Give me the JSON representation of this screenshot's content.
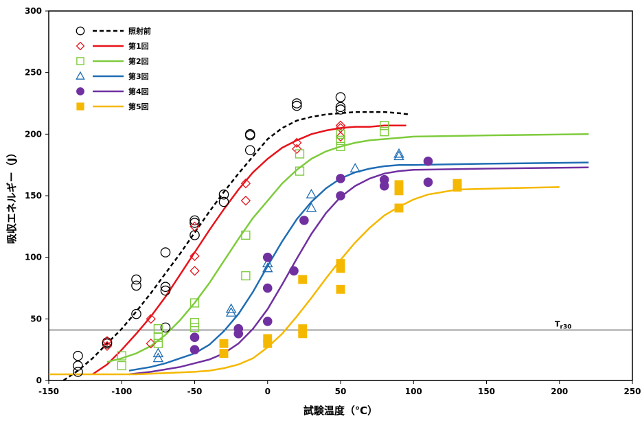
{
  "chart_data": {
    "type": "scatter",
    "xlabel": "試験温度（℃）",
    "ylabel": "吸収エネルギー（J）",
    "xlim": [
      -150,
      250
    ],
    "ylim": [
      0,
      300
    ],
    "x_ticks": [
      -150,
      -100,
      -50,
      0,
      50,
      100,
      150,
      200,
      250
    ],
    "y_ticks": [
      0,
      50,
      100,
      150,
      200,
      250,
      300
    ],
    "grid": false,
    "legend_position": "top-left",
    "reference_line": {
      "y": 41,
      "label_main": "T",
      "label_sub": "r30"
    },
    "series": [
      {
        "name": "照射前",
        "color": "#000000",
        "marker": "circle-open",
        "line_style": "dashed",
        "points": [
          [
            -130,
            20
          ],
          [
            -130,
            12
          ],
          [
            -130,
            7
          ],
          [
            -110,
            31
          ],
          [
            -110,
            30
          ],
          [
            -90,
            82
          ],
          [
            -90,
            77
          ],
          [
            -90,
            54
          ],
          [
            -70,
            104
          ],
          [
            -70,
            76
          ],
          [
            -70,
            73
          ],
          [
            -70,
            43
          ],
          [
            -50,
            130
          ],
          [
            -50,
            128
          ],
          [
            -50,
            118
          ],
          [
            -30,
            151
          ],
          [
            -30,
            145
          ],
          [
            -12,
            200
          ],
          [
            -12,
            199
          ],
          [
            -12,
            187
          ],
          [
            20,
            225
          ],
          [
            20,
            223
          ],
          [
            50,
            230
          ],
          [
            50,
            222
          ],
          [
            50,
            220
          ]
        ],
        "curve": [
          [
            -140,
            0
          ],
          [
            -130,
            8
          ],
          [
            -120,
            18
          ],
          [
            -110,
            30
          ],
          [
            -100,
            42
          ],
          [
            -90,
            56
          ],
          [
            -80,
            71
          ],
          [
            -70,
            87
          ],
          [
            -60,
            103
          ],
          [
            -50,
            120
          ],
          [
            -40,
            137
          ],
          [
            -30,
            153
          ],
          [
            -20,
            168
          ],
          [
            -10,
            182
          ],
          [
            0,
            196
          ],
          [
            10,
            205
          ],
          [
            20,
            211
          ],
          [
            30,
            214
          ],
          [
            40,
            216
          ],
          [
            50,
            217
          ],
          [
            60,
            218
          ],
          [
            70,
            218
          ],
          [
            80,
            218
          ],
          [
            90,
            217
          ],
          [
            97,
            216
          ]
        ]
      },
      {
        "name": "第1回",
        "color": "#e8131b",
        "marker": "diamond-open",
        "line_style": "solid",
        "points": [
          [
            -110,
            32
          ],
          [
            -110,
            28
          ],
          [
            -80,
            50
          ],
          [
            -80,
            30
          ],
          [
            -50,
            125
          ],
          [
            -50,
            101
          ],
          [
            -50,
            89
          ],
          [
            -15,
            160
          ],
          [
            -15,
            146
          ],
          [
            20,
            193
          ],
          [
            20,
            188
          ],
          [
            50,
            207
          ],
          [
            50,
            205
          ],
          [
            50,
            198
          ]
        ],
        "curve": [
          [
            -120,
            5
          ],
          [
            -110,
            13
          ],
          [
            -100,
            25
          ],
          [
            -90,
            38
          ],
          [
            -80,
            52
          ],
          [
            -70,
            68
          ],
          [
            -60,
            86
          ],
          [
            -50,
            104
          ],
          [
            -40,
            122
          ],
          [
            -30,
            139
          ],
          [
            -20,
            155
          ],
          [
            -10,
            169
          ],
          [
            0,
            180
          ],
          [
            10,
            189
          ],
          [
            20,
            195
          ],
          [
            30,
            200
          ],
          [
            40,
            203
          ],
          [
            50,
            205
          ],
          [
            60,
            206
          ],
          [
            70,
            206
          ],
          [
            80,
            207
          ],
          [
            95,
            207
          ]
        ]
      },
      {
        "name": "第2回",
        "color": "#7ecb3c",
        "marker": "square-open",
        "line_style": "solid",
        "points": [
          [
            -100,
            20
          ],
          [
            -100,
            12
          ],
          [
            -75,
            42
          ],
          [
            -75,
            35
          ],
          [
            -75,
            30
          ],
          [
            -50,
            63
          ],
          [
            -50,
            47
          ],
          [
            -50,
            43
          ],
          [
            -15,
            118
          ],
          [
            -15,
            85
          ],
          [
            22,
            184
          ],
          [
            22,
            170
          ],
          [
            50,
            200
          ],
          [
            50,
            195
          ],
          [
            50,
            190
          ],
          [
            80,
            207
          ],
          [
            80,
            202
          ]
        ],
        "curve": [
          [
            -110,
            15
          ],
          [
            -100,
            18
          ],
          [
            -90,
            22
          ],
          [
            -80,
            28
          ],
          [
            -70,
            37
          ],
          [
            -60,
            49
          ],
          [
            -50,
            63
          ],
          [
            -40,
            79
          ],
          [
            -30,
            97
          ],
          [
            -20,
            115
          ],
          [
            -10,
            132
          ],
          [
            0,
            146
          ],
          [
            10,
            160
          ],
          [
            20,
            171
          ],
          [
            30,
            180
          ],
          [
            40,
            186
          ],
          [
            50,
            190
          ],
          [
            60,
            193
          ],
          [
            70,
            195
          ],
          [
            80,
            196
          ],
          [
            100,
            198
          ],
          [
            150,
            199
          ],
          [
            220,
            200
          ]
        ]
      },
      {
        "name": "第3回",
        "color": "#1f6db4",
        "marker": "triangle-open",
        "line_style": "solid",
        "points": [
          [
            -75,
            22
          ],
          [
            -75,
            18
          ],
          [
            -25,
            58
          ],
          [
            -25,
            55
          ],
          [
            0,
            95
          ],
          [
            0,
            91
          ],
          [
            30,
            151
          ],
          [
            30,
            140
          ],
          [
            60,
            172
          ],
          [
            90,
            184
          ],
          [
            90,
            182
          ]
        ],
        "curve": [
          [
            -95,
            8
          ],
          [
            -80,
            11
          ],
          [
            -70,
            14
          ],
          [
            -60,
            18
          ],
          [
            -50,
            22
          ],
          [
            -40,
            29
          ],
          [
            -30,
            40
          ],
          [
            -20,
            54
          ],
          [
            -10,
            72
          ],
          [
            0,
            93
          ],
          [
            10,
            113
          ],
          [
            20,
            131
          ],
          [
            30,
            145
          ],
          [
            40,
            156
          ],
          [
            50,
            164
          ],
          [
            60,
            169
          ],
          [
            70,
            172
          ],
          [
            80,
            174
          ],
          [
            90,
            175
          ],
          [
            100,
            175
          ],
          [
            150,
            176
          ],
          [
            220,
            177
          ]
        ]
      },
      {
        "name": "第4回",
        "color": "#7030a0",
        "marker": "circle-filled",
        "line_style": "solid",
        "points": [
          [
            -50,
            35
          ],
          [
            -50,
            25
          ],
          [
            -20,
            42
          ],
          [
            -20,
            38
          ],
          [
            0,
            100
          ],
          [
            0,
            75
          ],
          [
            0,
            48
          ],
          [
            18,
            89
          ],
          [
            25,
            130
          ],
          [
            50,
            164
          ],
          [
            50,
            150
          ],
          [
            80,
            163
          ],
          [
            80,
            158
          ],
          [
            110,
            178
          ],
          [
            110,
            161
          ]
        ],
        "curve": [
          [
            -95,
            5
          ],
          [
            -80,
            7
          ],
          [
            -70,
            9
          ],
          [
            -60,
            11
          ],
          [
            -50,
            14
          ],
          [
            -40,
            17
          ],
          [
            -30,
            22
          ],
          [
            -20,
            30
          ],
          [
            -10,
            42
          ],
          [
            0,
            58
          ],
          [
            10,
            78
          ],
          [
            20,
            99
          ],
          [
            30,
            119
          ],
          [
            40,
            136
          ],
          [
            50,
            149
          ],
          [
            60,
            158
          ],
          [
            70,
            164
          ],
          [
            80,
            168
          ],
          [
            90,
            170
          ],
          [
            100,
            171
          ],
          [
            150,
            172
          ],
          [
            220,
            173
          ]
        ]
      },
      {
        "name": "第5回",
        "color": "#f5b800",
        "marker": "square-filled",
        "line_style": "solid",
        "points": [
          [
            -30,
            30
          ],
          [
            -30,
            22
          ],
          [
            0,
            34
          ],
          [
            0,
            30
          ],
          [
            24,
            82
          ],
          [
            24,
            42
          ],
          [
            24,
            38
          ],
          [
            50,
            95
          ],
          [
            50,
            91
          ],
          [
            50,
            74
          ],
          [
            90,
            159
          ],
          [
            90,
            154
          ],
          [
            90,
            140
          ],
          [
            130,
            160
          ],
          [
            130,
            157
          ]
        ],
        "curve": [
          [
            -150,
            5
          ],
          [
            -130,
            5
          ],
          [
            -110,
            5
          ],
          [
            -90,
            5
          ],
          [
            -70,
            6
          ],
          [
            -50,
            7
          ],
          [
            -40,
            8
          ],
          [
            -30,
            10
          ],
          [
            -20,
            13
          ],
          [
            -10,
            18
          ],
          [
            0,
            27
          ],
          [
            10,
            38
          ],
          [
            20,
            52
          ],
          [
            30,
            67
          ],
          [
            40,
            83
          ],
          [
            50,
            98
          ],
          [
            60,
            112
          ],
          [
            70,
            124
          ],
          [
            80,
            134
          ],
          [
            90,
            141
          ],
          [
            100,
            147
          ],
          [
            110,
            151
          ],
          [
            130,
            155
          ],
          [
            160,
            156
          ],
          [
            200,
            157
          ]
        ]
      }
    ]
  }
}
